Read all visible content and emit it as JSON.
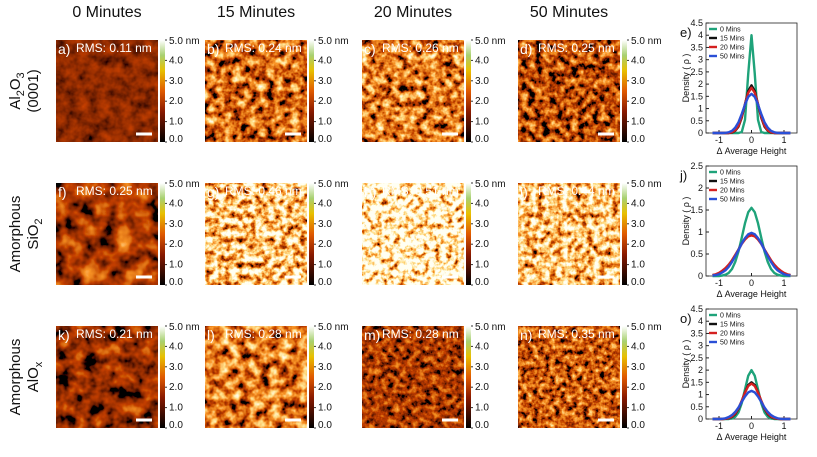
{
  "columns": [
    "0 Minutes",
    "15 Minutes",
    "20 Minutes",
    "50 Minutes"
  ],
  "rows": [
    {
      "label": [
        [
          {
            "text": "Al",
            "sub": "2"
          },
          {
            "text": "O",
            "sub": "3"
          }
        ],
        [
          {
            "text": "(0001)"
          }
        ]
      ],
      "panels": [
        {
          "tag": "a)",
          "rms": "RMS: 0.11 nm"
        },
        {
          "tag": "b)",
          "rms": "RMS: 0.24 nm"
        },
        {
          "tag": "c)",
          "rms": "RMS: 0.26 nm"
        },
        {
          "tag": "d)",
          "rms": "RMS: 0.25 nm"
        }
      ]
    },
    {
      "label": [
        [
          {
            "text": "Amorphous"
          }
        ],
        [
          {
            "text": "SiO",
            "sub": "2"
          }
        ]
      ],
      "panels": [
        {
          "tag": "f)",
          "rms": "RMS: 0.25 nm"
        },
        {
          "tag": "g)",
          "rms": "RMS: 0.46 nm"
        },
        {
          "tag": "h)",
          "rms": "RMS: 0.51 nm"
        },
        {
          "tag": "i)",
          "rms": "RMS: 0.44 nm"
        }
      ]
    },
    {
      "label": [
        [
          {
            "text": "Amorphous"
          }
        ],
        [
          {
            "text": "AlO",
            "sub": "x"
          }
        ]
      ],
      "panels": [
        {
          "tag": "k)",
          "rms": "RMS: 0.21 nm"
        },
        {
          "tag": "l)",
          "rms": "RMS: 0.28 nm"
        },
        {
          "tag": "m)",
          "rms": "RMS: 0.28 nm"
        },
        {
          "tag": "n)",
          "rms": "RMS: 0.35 nm"
        }
      ]
    }
  ],
  "colorbar_lim": [
    0,
    5
  ],
  "colorbar_ticks": [
    {
      "value": 5,
      "label": "5.0 nm"
    },
    {
      "value": 4,
      "label": "4.0"
    },
    {
      "value": 3,
      "label": "3.0"
    },
    {
      "value": 2,
      "label": "2.0"
    },
    {
      "value": 1,
      "label": "1.0"
    },
    {
      "value": 0,
      "label": "0.0"
    }
  ],
  "chart_data": [
    {
      "type": "line",
      "panel_label": "e)",
      "xlabel": "Δ Average Height",
      "ylabel": "Density ( ρ )",
      "x": [
        -1.2,
        -1.1,
        -1.0,
        -0.9,
        -0.8,
        -0.7,
        -0.6,
        -0.5,
        -0.4,
        -0.3,
        -0.2,
        -0.1,
        0,
        0.1,
        0.2,
        0.3,
        0.4,
        0.5,
        0.6,
        0.7,
        0.8,
        0.9,
        1.0,
        1.1,
        1.2
      ],
      "xlim": [
        -1.4,
        1.4
      ],
      "xticks": [
        -1,
        0,
        1
      ],
      "ylim": [
        0,
        4.5
      ],
      "yticks": [
        0,
        0.5,
        1,
        1.5,
        2,
        2.5,
        3,
        3.5,
        4,
        4.5
      ],
      "series": [
        {
          "name": "0 Mins",
          "color": "#1fa37a",
          "values": [
            0,
            0,
            0,
            0,
            0,
            0,
            0,
            0,
            0,
            0.04,
            0.54,
            2.43,
            4.0,
            2.43,
            0.54,
            0.04,
            0,
            0,
            0,
            0,
            0,
            0,
            0,
            0,
            0
          ]
        },
        {
          "name": "15 Mins",
          "color": "#111111",
          "values": [
            0,
            0,
            0,
            0,
            0,
            0,
            0.02,
            0.09,
            0.26,
            0.63,
            1.18,
            1.72,
            1.95,
            1.72,
            1.18,
            0.63,
            0.26,
            0.09,
            0.02,
            0,
            0,
            0,
            0,
            0,
            0
          ]
        },
        {
          "name": "20 Mins",
          "color": "#d42020",
          "values": [
            0,
            0,
            0,
            0,
            0,
            0,
            0.03,
            0.11,
            0.3,
            0.67,
            1.18,
            1.65,
            1.85,
            1.65,
            1.18,
            0.67,
            0.3,
            0.11,
            0.03,
            0,
            0,
            0,
            0,
            0,
            0
          ]
        },
        {
          "name": "50 Mins",
          "color": "#2a4fd6",
          "values": [
            0,
            0,
            0,
            0,
            0.01,
            0.03,
            0.09,
            0.22,
            0.44,
            0.78,
            1.16,
            1.48,
            1.6,
            1.48,
            1.16,
            0.78,
            0.44,
            0.22,
            0.09,
            0.03,
            0.01,
            0,
            0,
            0,
            0
          ]
        }
      ]
    },
    {
      "type": "line",
      "panel_label": "j)",
      "xlabel": "Δ Average Height",
      "ylabel": "Density ( ρ )",
      "x": [
        -1.2,
        -1.1,
        -1.0,
        -0.9,
        -0.8,
        -0.7,
        -0.6,
        -0.5,
        -0.4,
        -0.3,
        -0.2,
        -0.1,
        0,
        0.1,
        0.2,
        0.3,
        0.4,
        0.5,
        0.6,
        0.7,
        0.8,
        0.9,
        1.0,
        1.1,
        1.2
      ],
      "xlim": [
        -1.4,
        1.4
      ],
      "xticks": [
        -1,
        0,
        1
      ],
      "ylim": [
        0,
        2.5
      ],
      "yticks": [
        0,
        0.5,
        1,
        1.5,
        2,
        2.5
      ],
      "series": [
        {
          "name": "0 Mins",
          "color": "#1fa37a",
          "values": [
            0,
            0,
            0,
            0.01,
            0.03,
            0.07,
            0.16,
            0.32,
            0.56,
            0.87,
            1.2,
            1.45,
            1.55,
            1.45,
            1.2,
            0.87,
            0.56,
            0.32,
            0.16,
            0.07,
            0.03,
            0.01,
            0,
            0,
            0
          ]
        },
        {
          "name": "15 Mins",
          "color": "#111111",
          "values": [
            0.02,
            0.03,
            0.06,
            0.1,
            0.15,
            0.24,
            0.34,
            0.47,
            0.6,
            0.74,
            0.85,
            0.92,
            0.95,
            0.92,
            0.85,
            0.74,
            0.6,
            0.47,
            0.34,
            0.24,
            0.15,
            0.1,
            0.06,
            0.03,
            0.02
          ]
        },
        {
          "name": "20 Mins",
          "color": "#d42020",
          "values": [
            0.02,
            0.04,
            0.07,
            0.12,
            0.18,
            0.26,
            0.36,
            0.48,
            0.6,
            0.73,
            0.83,
            0.9,
            0.92,
            0.9,
            0.83,
            0.73,
            0.6,
            0.48,
            0.36,
            0.26,
            0.18,
            0.12,
            0.07,
            0.04,
            0.02
          ]
        },
        {
          "name": "50 Mins",
          "color": "#2a4fd6",
          "values": [
            0.01,
            0.02,
            0.04,
            0.08,
            0.13,
            0.21,
            0.32,
            0.45,
            0.59,
            0.74,
            0.86,
            0.95,
            0.98,
            0.95,
            0.86,
            0.74,
            0.59,
            0.45,
            0.32,
            0.21,
            0.13,
            0.08,
            0.04,
            0.02,
            0.01
          ]
        }
      ]
    },
    {
      "type": "line",
      "panel_label": "o)",
      "xlabel": "Δ Average Height",
      "ylabel": "Density ( ρ )",
      "x": [
        -1.2,
        -1.1,
        -1.0,
        -0.9,
        -0.8,
        -0.7,
        -0.6,
        -0.5,
        -0.4,
        -0.3,
        -0.2,
        -0.1,
        0,
        0.1,
        0.2,
        0.3,
        0.4,
        0.5,
        0.6,
        0.7,
        0.8,
        0.9,
        1.0,
        1.1,
        1.2
      ],
      "xlim": [
        -1.4,
        1.4
      ],
      "xticks": [
        -1,
        0,
        1
      ],
      "ylim": [
        0,
        4.5
      ],
      "yticks": [
        0,
        0.5,
        1,
        1.5,
        2,
        2.5,
        3,
        3.5,
        4,
        4.5
      ],
      "series": [
        {
          "name": "0 Mins",
          "color": "#1fa37a",
          "values": [
            0,
            0,
            0,
            0,
            0,
            0,
            0.02,
            0.09,
            0.27,
            0.65,
            1.21,
            1.77,
            2.0,
            1.77,
            1.21,
            0.65,
            0.27,
            0.09,
            0.02,
            0,
            0,
            0,
            0,
            0,
            0
          ]
        },
        {
          "name": "15 Mins",
          "color": "#111111",
          "values": [
            0,
            0,
            0,
            0,
            0.01,
            0.03,
            0.08,
            0.2,
            0.42,
            0.73,
            1.09,
            1.39,
            1.5,
            1.39,
            1.09,
            0.73,
            0.42,
            0.2,
            0.08,
            0.03,
            0.01,
            0,
            0,
            0,
            0
          ]
        },
        {
          "name": "20 Mins",
          "color": "#d42020",
          "values": [
            0,
            0,
            0,
            0,
            0.01,
            0.04,
            0.1,
            0.23,
            0.44,
            0.75,
            1.08,
            1.35,
            1.45,
            1.35,
            1.08,
            0.75,
            0.44,
            0.23,
            0.1,
            0.04,
            0.01,
            0,
            0,
            0,
            0
          ]
        },
        {
          "name": "50 Mins",
          "color": "#2a4fd6",
          "values": [
            0,
            0,
            0,
            0.01,
            0.03,
            0.08,
            0.16,
            0.29,
            0.47,
            0.7,
            0.92,
            1.09,
            1.15,
            1.09,
            0.92,
            0.7,
            0.47,
            0.29,
            0.16,
            0.08,
            0.03,
            0.01,
            0,
            0,
            0
          ]
        }
      ]
    }
  ]
}
